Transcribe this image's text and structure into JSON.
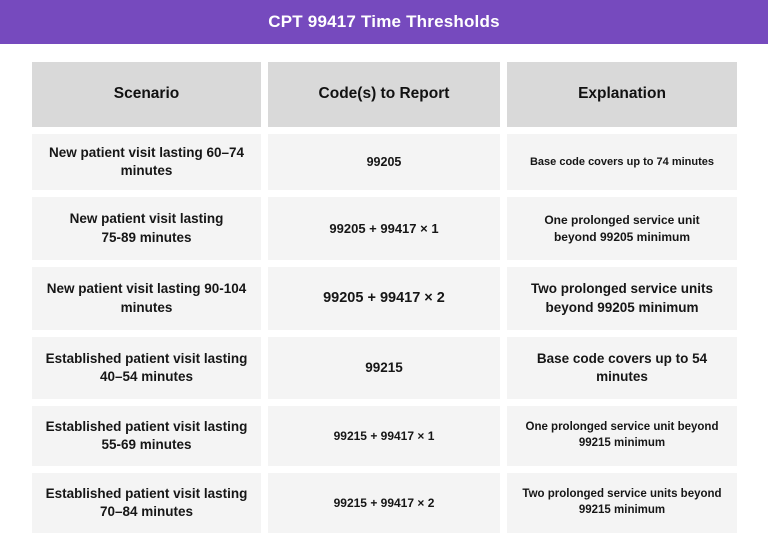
{
  "title_banner": {
    "title": "CPT 99417 Time Thresholds"
  },
  "chart_data": {
    "type": "table",
    "title": "CPT 99417 Time Thresholds",
    "columns": [
      "Scenario",
      "Code(s) to Report",
      "Explanation"
    ],
    "rows": [
      [
        "New patient visit lasting 60–74\nminutes",
        "99205",
        "Base code covers up to 74 minutes"
      ],
      [
        "New patient visit lasting\n75-89 minutes",
        "99205 + 99417 × 1",
        "One prolonged service unit\nbeyond 99205 minimum"
      ],
      [
        "New patient visit lasting 90-104\nminutes",
        "99205 + 99417 × 2",
        "Two prolonged service units\nbeyond 99205 minimum"
      ],
      [
        "Established patient visit lasting\n40–54 minutes",
        "99215",
        "Base code covers up to 54\nminutes"
      ],
      [
        "Established patient visit lasting\n55-69 minutes",
        "99215 + 99417 × 1",
        "One prolonged service unit beyond\n99215 minimum"
      ],
      [
        "Established patient visit lasting\n70–84 minutes",
        "99215 + 99417 × 2",
        "Two prolonged service units beyond\n99215 minimum"
      ]
    ]
  },
  "colors": {
    "banner_background": "#764ABE",
    "banner_text": "#FFFFFF",
    "header_cell_background": "#D9D9D9",
    "body_cell_background": "#F4F4F4",
    "cell_text": "#161616",
    "page_background": "#FFFFFF"
  }
}
